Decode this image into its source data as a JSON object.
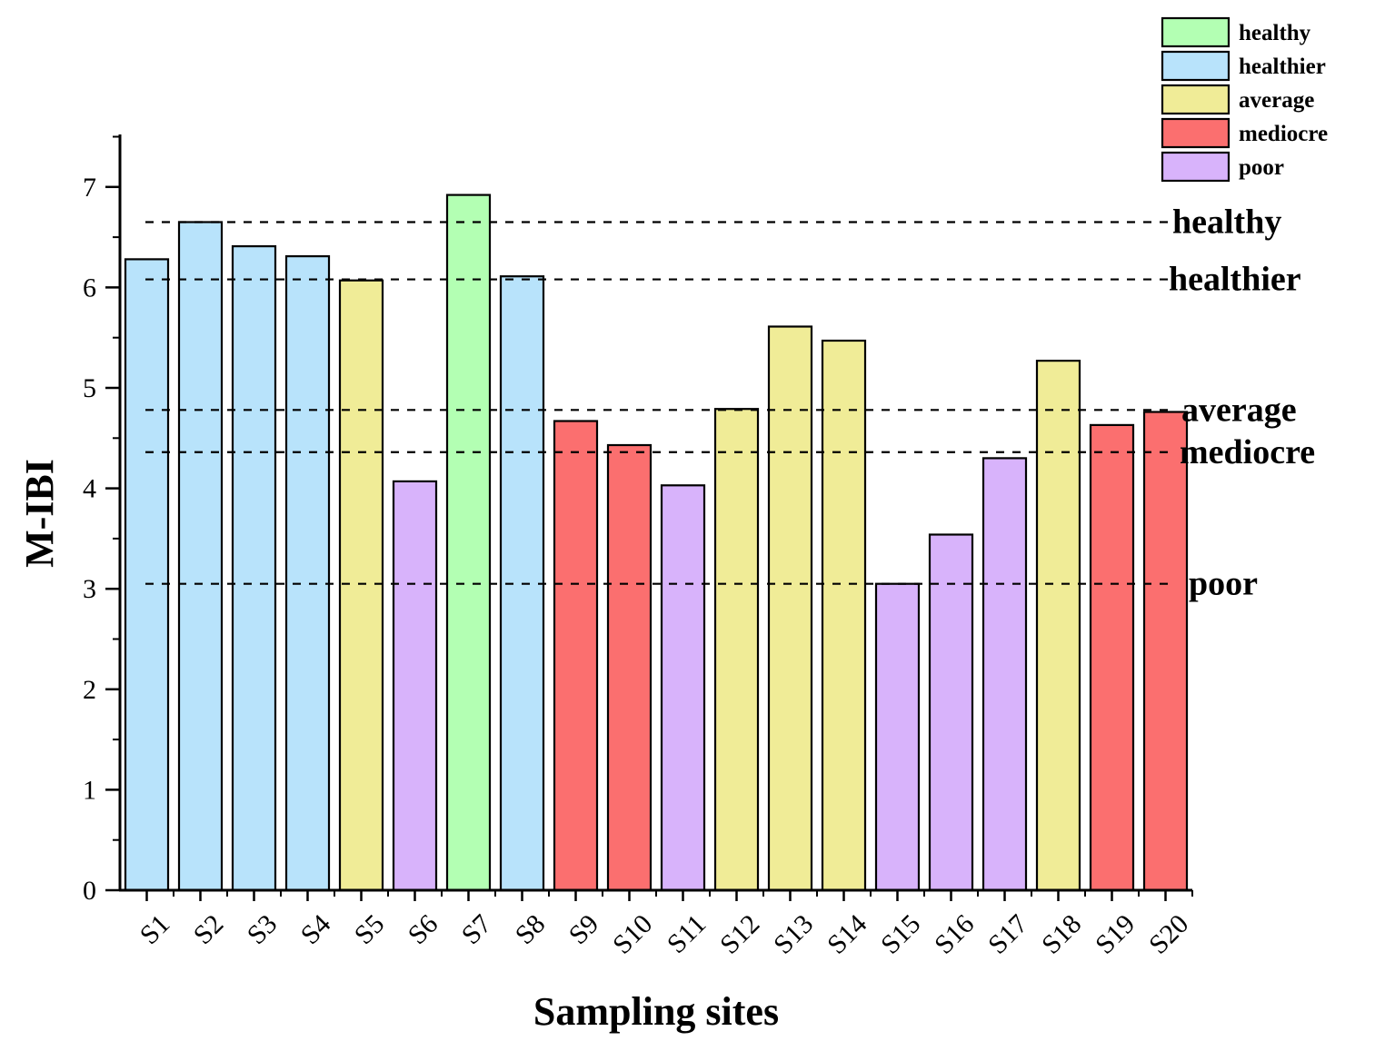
{
  "chart_data": {
    "type": "bar",
    "title": "",
    "xlabel": "Sampling sites",
    "ylabel": "M-IBI",
    "ylim": [
      0,
      7.5
    ],
    "yticks": [
      0,
      1,
      2,
      3,
      4,
      5,
      6,
      7
    ],
    "categories": [
      "S1",
      "S2",
      "S3",
      "S4",
      "S5",
      "S6",
      "S7",
      "S8",
      "S9",
      "S10",
      "S11",
      "S12",
      "S13",
      "S14",
      "S15",
      "S16",
      "S17",
      "S18",
      "S19",
      "S20"
    ],
    "values": [
      6.28,
      6.65,
      6.41,
      6.31,
      6.07,
      4.07,
      6.92,
      6.11,
      4.67,
      4.43,
      4.03,
      4.79,
      5.61,
      5.47,
      3.05,
      3.54,
      4.3,
      5.27,
      4.63,
      4.76
    ],
    "classes": [
      "healthier",
      "healthier",
      "healthier",
      "healthier",
      "average",
      "poor",
      "healthy",
      "healthier",
      "mediocre",
      "mediocre",
      "poor",
      "average",
      "average",
      "average",
      "poor",
      "poor",
      "poor",
      "average",
      "mediocre",
      "mediocre"
    ],
    "legend": [
      {
        "key": "healthy",
        "label": "healthy",
        "color": "#b3ffb3"
      },
      {
        "key": "healthier",
        "label": "healthier",
        "color": "#b8e3fb"
      },
      {
        "key": "average",
        "label": "average",
        "color": "#f0ec97"
      },
      {
        "key": "mediocre",
        "label": "mediocre",
        "color": "#fb6f6f"
      },
      {
        "key": "poor",
        "label": "poor",
        "color": "#d8b3fb"
      }
    ],
    "legend_position": "top-right",
    "thresholds": [
      {
        "label": "healthy",
        "value": 6.65
      },
      {
        "label": "healthier",
        "value": 6.08
      },
      {
        "label": "average",
        "value": 4.78
      },
      {
        "label": "mediocre",
        "value": 4.36
      },
      {
        "label": "poor",
        "value": 3.05
      }
    ],
    "grid": false
  }
}
